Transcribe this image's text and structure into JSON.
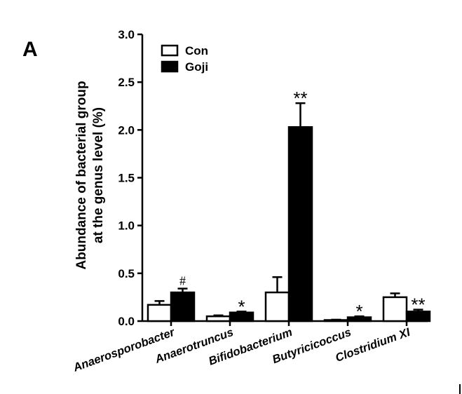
{
  "panel_label": "A",
  "chart_data": {
    "type": "bar",
    "ylabel_lines": [
      "Abundance of bacterial group",
      "at the genus level (%)"
    ],
    "ylim": [
      0,
      3.0
    ],
    "yticks": [
      "0.0",
      "0.5",
      "1.0",
      "1.5",
      "2.0",
      "2.5",
      "3.0"
    ],
    "categories": [
      "Anaerosporobacter",
      "Anaerotruncus",
      "Bifidobacterium",
      "Butyricicoccus",
      "Clostridium XI"
    ],
    "series": [
      {
        "name": "Con",
        "color": "#ffffff",
        "values": [
          0.17,
          0.05,
          0.3,
          0.01,
          0.25
        ],
        "errors": [
          0.04,
          0.01,
          0.16,
          0.005,
          0.04
        ]
      },
      {
        "name": "Goji",
        "color": "#000000",
        "values": [
          0.3,
          0.09,
          2.03,
          0.04,
          0.1
        ],
        "errors": [
          0.04,
          0.01,
          0.25,
          0.01,
          0.02
        ]
      }
    ],
    "significance": [
      "#",
      "*",
      "**",
      "*",
      "**"
    ],
    "legend_position": "top-left"
  }
}
